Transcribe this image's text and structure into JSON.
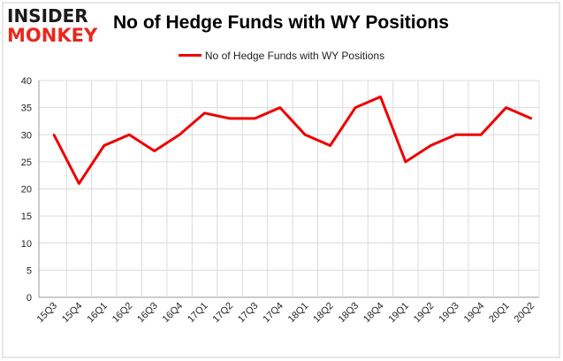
{
  "logo": {
    "line1": "INSIDER",
    "line2": "MONKEY",
    "colors": {
      "line1": "#1a1a1a",
      "line2": "#e8281e"
    }
  },
  "chart_data": {
    "type": "line",
    "title": "No of Hedge Funds with WY Positions",
    "xlabel": "",
    "ylabel": "",
    "ylim": [
      0,
      40
    ],
    "yticks": [
      0,
      5,
      10,
      15,
      20,
      25,
      30,
      35,
      40
    ],
    "grid": true,
    "legend_position": "top-center",
    "categories": [
      "15Q3",
      "15Q4",
      "16Q1",
      "16Q2",
      "16Q3",
      "16Q4",
      "17Q1",
      "17Q2",
      "17Q3",
      "17Q4",
      "18Q1",
      "18Q2",
      "18Q3",
      "18Q4",
      "19Q1",
      "19Q2",
      "19Q3",
      "19Q4",
      "20Q1",
      "20Q2"
    ],
    "series": [
      {
        "name": "No of Hedge Funds with WY Positions",
        "color": "#ee0000",
        "values": [
          30,
          21,
          28,
          30,
          27,
          30,
          34,
          33,
          33,
          35,
          30,
          28,
          35,
          37,
          25,
          28,
          30,
          30,
          35,
          33
        ]
      }
    ]
  }
}
